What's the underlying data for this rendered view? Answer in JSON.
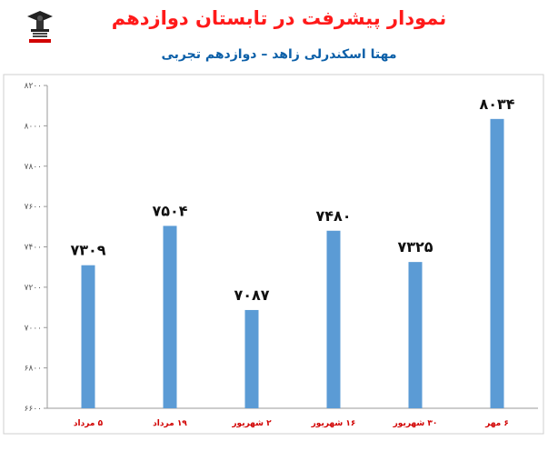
{
  "header": {
    "title": "نمودار پیشرفت در تابستان دوازدهم",
    "subtitle": "مهتا اسکندرلی زاهد – دوازدهم تجربی"
  },
  "chart_data": {
    "type": "bar",
    "categories": [
      "۵ مرداد",
      "۱۹ مرداد",
      "۲ شهریور",
      "۱۶ شهریور",
      "۳۰ شهریور",
      "۶ مهر"
    ],
    "values": [
      7309,
      7504,
      7087,
      7480,
      7325,
      8034
    ],
    "value_labels": [
      "۷۳۰۹",
      "۷۵۰۴",
      "۷۰۸۷",
      "۷۴۸۰",
      "۷۳۲۵",
      "۸۰۳۴"
    ],
    "yticks": [
      6600,
      6800,
      7000,
      7200,
      7400,
      7600,
      7800,
      8000,
      8200
    ],
    "ytick_labels": [
      "۶۶۰۰",
      "۶۸۰۰",
      "۷۰۰۰",
      "۷۲۰۰",
      "۷۴۰۰",
      "۷۶۰۰",
      "۷۸۰۰",
      "۸۰۰۰",
      "۸۲۰۰"
    ],
    "ylim": [
      6600,
      8200
    ],
    "bar_color": "#5b9bd5",
    "grid": false
  }
}
